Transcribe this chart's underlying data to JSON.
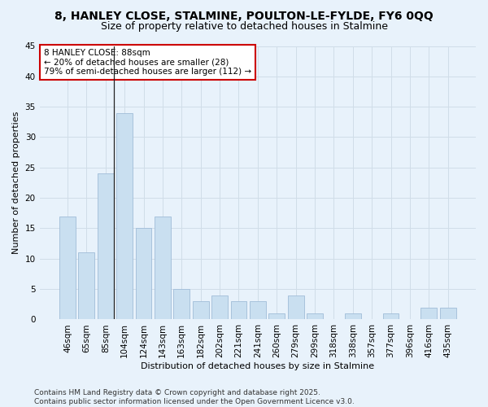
{
  "title1": "8, HANLEY CLOSE, STALMINE, POULTON-LE-FYLDE, FY6 0QQ",
  "title2": "Size of property relative to detached houses in Stalmine",
  "xlabel": "Distribution of detached houses by size in Stalmine",
  "ylabel": "Number of detached properties",
  "categories": [
    "46sqm",
    "65sqm",
    "85sqm",
    "104sqm",
    "124sqm",
    "143sqm",
    "163sqm",
    "182sqm",
    "202sqm",
    "221sqm",
    "241sqm",
    "260sqm",
    "279sqm",
    "299sqm",
    "318sqm",
    "338sqm",
    "357sqm",
    "377sqm",
    "396sqm",
    "416sqm",
    "435sqm"
  ],
  "values": [
    17,
    11,
    24,
    34,
    15,
    17,
    5,
    3,
    4,
    3,
    3,
    1,
    4,
    1,
    0,
    1,
    0,
    1,
    0,
    2,
    2
  ],
  "bar_color": "#c9dff0",
  "bar_edge_color": "#a0bcd8",
  "highlight_line_index": 2,
  "annotation_text": "8 HANLEY CLOSE: 88sqm\n← 20% of detached houses are smaller (28)\n79% of semi-detached houses are larger (112) →",
  "annotation_box_color": "#ffffff",
  "annotation_box_edge_color": "#cc0000",
  "ylim": [
    0,
    45
  ],
  "yticks": [
    0,
    5,
    10,
    15,
    20,
    25,
    30,
    35,
    40,
    45
  ],
  "grid_color": "#d0dde8",
  "bg_color": "#e8f2fb",
  "footer": "Contains HM Land Registry data © Crown copyright and database right 2025.\nContains public sector information licensed under the Open Government Licence v3.0.",
  "title_fontsize": 10,
  "subtitle_fontsize": 9,
  "axis_label_fontsize": 8,
  "tick_fontsize": 7.5,
  "annotation_fontsize": 7.5,
  "footer_fontsize": 6.5
}
